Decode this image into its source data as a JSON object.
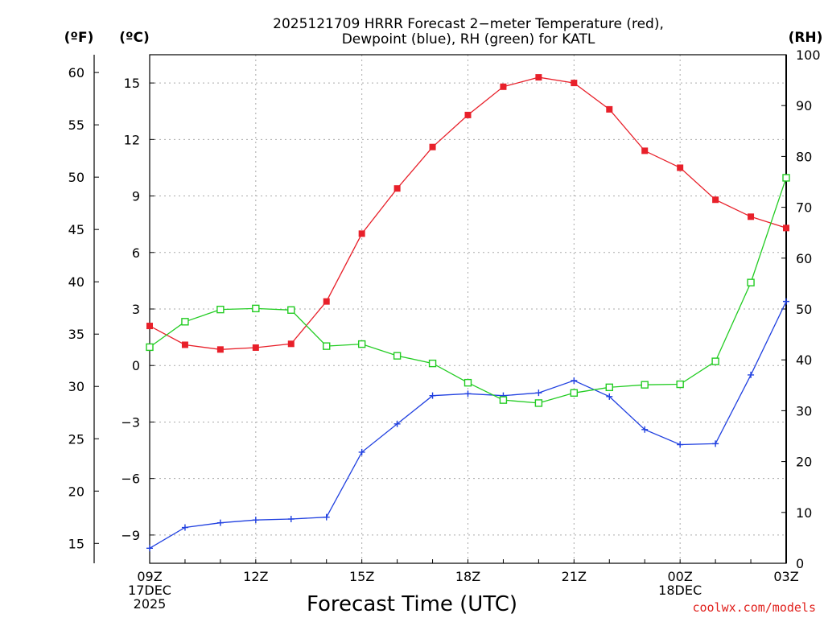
{
  "chart_data": {
    "type": "line",
    "title_line1": "2025121709 HRRR Forecast 2−meter Temperature (red),",
    "title_line2": "Dewpoint (blue), RH (green) for KATL",
    "xlabel": "Forecast Time (UTC)",
    "credit": "coolwx.com/models",
    "units": {
      "fahrenheit": "(ºF)",
      "celsius": "(ºC)",
      "rh": "(RH)"
    },
    "x_hours": [
      0,
      1,
      2,
      3,
      4,
      5,
      6,
      7,
      8,
      9,
      10,
      11,
      12,
      13,
      14,
      15,
      16,
      17,
      18
    ],
    "x_ticks": [
      {
        "hour": 0,
        "lines": [
          "09Z",
          "17DEC",
          "2025"
        ]
      },
      {
        "hour": 3,
        "lines": [
          "12Z"
        ]
      },
      {
        "hour": 6,
        "lines": [
          "15Z"
        ]
      },
      {
        "hour": 9,
        "lines": [
          "18Z"
        ]
      },
      {
        "hour": 12,
        "lines": [
          "21Z"
        ]
      },
      {
        "hour": 15,
        "lines": [
          "00Z",
          "18DEC"
        ]
      },
      {
        "hour": 18,
        "lines": [
          "03Z"
        ]
      }
    ],
    "celsius_axis": {
      "range": [
        -10.5,
        16.5
      ],
      "ticks": [
        "15",
        "12",
        "9",
        "6",
        "3",
        "0",
        "−3",
        "−6",
        "−9"
      ],
      "tick_values": [
        15,
        12,
        9,
        6,
        3,
        0,
        -3,
        -6,
        -9
      ]
    },
    "fahrenheit_axis": {
      "ticks": [
        "60",
        "55",
        "50",
        "45",
        "40",
        "35",
        "30",
        "25",
        "20",
        "15"
      ],
      "tick_values": [
        60,
        55,
        50,
        45,
        40,
        35,
        30,
        25,
        20,
        15
      ]
    },
    "rh_axis": {
      "range": [
        0,
        100
      ],
      "ticks": [
        "100",
        "90",
        "80",
        "70",
        "60",
        "50",
        "40",
        "30",
        "20",
        "10",
        "0"
      ],
      "tick_values": [
        100,
        90,
        80,
        70,
        60,
        50,
        40,
        30,
        20,
        10,
        0
      ]
    },
    "series": [
      {
        "name": "Temperature",
        "color": "#e8202a",
        "marker": "filled-square",
        "axis": "celsius",
        "values": [
          2.1,
          1.1,
          0.85,
          0.95,
          1.15,
          3.4,
          7.0,
          9.4,
          11.6,
          13.3,
          14.8,
          15.3,
          15.0,
          13.6,
          11.4,
          10.5,
          8.8,
          7.9,
          7.3
        ]
      },
      {
        "name": "Dewpoint",
        "color": "#2040e0",
        "marker": "plus",
        "axis": "celsius",
        "values": [
          -9.7,
          -8.6,
          -8.35,
          -8.2,
          -8.15,
          -8.05,
          -4.6,
          -3.1,
          -1.6,
          -1.5,
          -1.6,
          -1.45,
          -0.8,
          -1.65,
          -3.4,
          -4.2,
          -4.15,
          -0.5,
          3.4
        ]
      },
      {
        "name": "RH",
        "color": "#22cc22",
        "marker": "open-square",
        "axis": "rh",
        "values": [
          42.5,
          47.5,
          49.9,
          50.1,
          49.8,
          42.7,
          43.1,
          40.8,
          39.3,
          35.5,
          32.1,
          31.5,
          33.5,
          34.6,
          35.1,
          35.2,
          39.7,
          55.2,
          75.8
        ]
      }
    ]
  }
}
